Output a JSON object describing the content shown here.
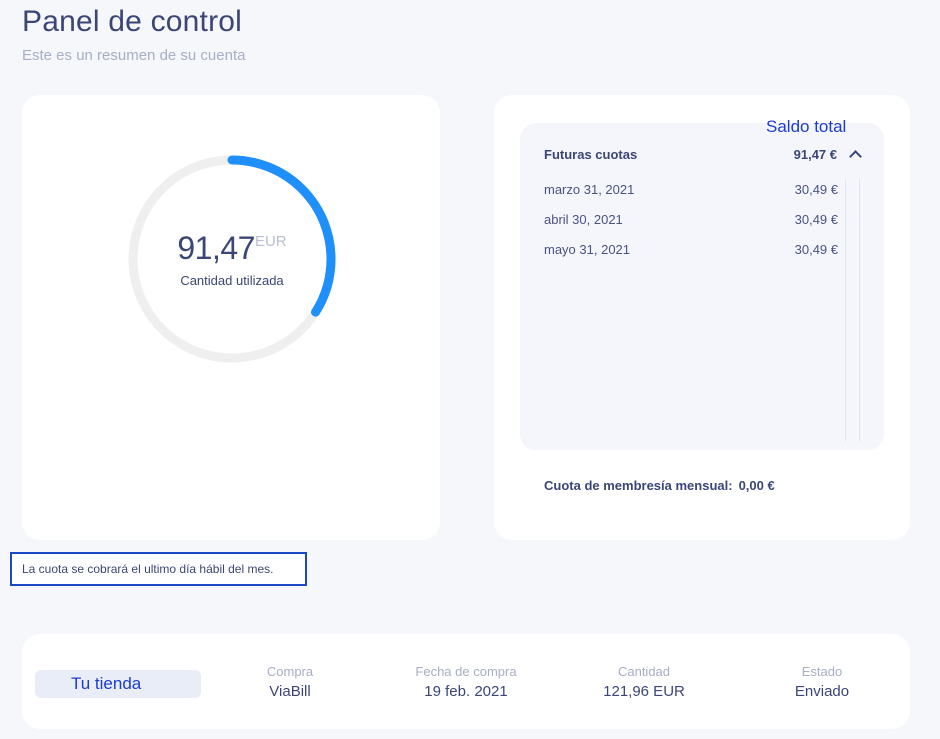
{
  "header": {
    "title": "Panel de control",
    "subtitle": "Este es un resumen de su cuenta"
  },
  "usage": {
    "amount": "91,47",
    "currency": "EUR",
    "label": "Cantidad utilizada",
    "progress_fraction": 0.34,
    "track_color": "#efefef",
    "fill_color": "#1e8ffb"
  },
  "balance": {
    "saldo_label": "Saldo total",
    "future_title": "Futuras cuotas",
    "future_total": "91,47 €",
    "installments": [
      {
        "date": "marzo 31, 2021",
        "amount": "30,49 €"
      },
      {
        "date": "abril 30, 2021",
        "amount": "30,49 €"
      },
      {
        "date": "mayo 31, 2021",
        "amount": "30,49 €"
      }
    ],
    "membership_label": "Cuota de membresía mensual:",
    "membership_value": "0,00 €"
  },
  "note": "La cuota se cobrará el ultimo día hábil del mes.",
  "purchase": {
    "shop_name": "Tu tienda",
    "columns": [
      {
        "label": "Compra",
        "value": "ViaBill"
      },
      {
        "label": "Fecha de compra",
        "value": "19 feb. 2021"
      },
      {
        "label": "Cantidad",
        "value": "121,96 EUR"
      },
      {
        "label": "Estado",
        "value": "Enviado"
      }
    ]
  }
}
